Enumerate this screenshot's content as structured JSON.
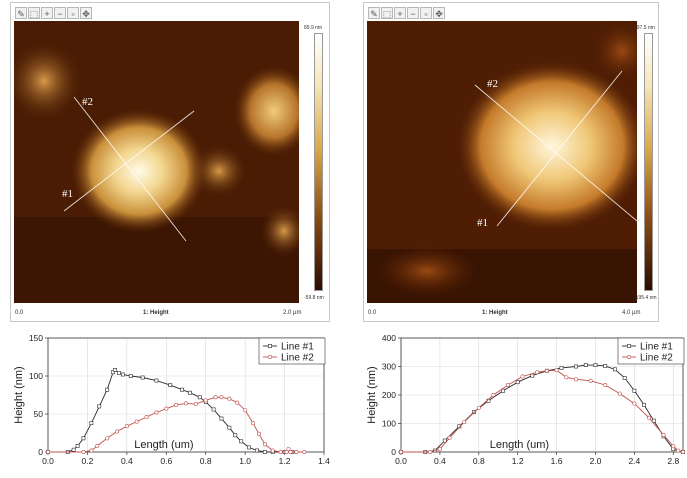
{
  "afm": [
    {
      "toolbar_icons": [
        "pencil-icon",
        "zoom-region-icon",
        "zoom-in-icon",
        "zoom-out-icon",
        "fit-icon",
        "pan-icon"
      ],
      "colorbar_max": "89.9 nm",
      "colorbar_min": "-59.8 nm",
      "x_axis_start": "0.0",
      "x_axis_label": "1: Height",
      "x_axis_end": "2.0 µm",
      "line_labels": [
        "#2",
        "#1"
      ]
    },
    {
      "toolbar_icons": [
        "pencil-icon",
        "zoom-region-icon",
        "zoom-in-icon",
        "zoom-out-icon",
        "fit-icon",
        "pan-icon"
      ],
      "colorbar_max": "297.5 nm",
      "colorbar_min": "-195.4 nm",
      "x_axis_start": "0.0",
      "x_axis_label": "1: Height",
      "x_axis_end": "4.0 µm",
      "line_labels": [
        "#2",
        "#1"
      ]
    }
  ],
  "chart_data": [
    {
      "type": "line",
      "xlabel": "Length (um)",
      "ylabel": "Height (nm)",
      "xlim": [
        0.0,
        1.4
      ],
      "ylim": [
        0,
        150
      ],
      "xticks": [
        "0.0",
        "0.2",
        "0.4",
        "0.6",
        "0.8",
        "1.0",
        "1.2",
        "1.4"
      ],
      "yticks": [
        "0",
        "50",
        "100",
        "150"
      ],
      "grid": true,
      "legend": "top-right",
      "series": [
        {
          "name": "Line #1",
          "color": "#2b2b2b",
          "marker": "square",
          "x": [
            0.0,
            0.1,
            0.13,
            0.15,
            0.18,
            0.22,
            0.26,
            0.3,
            0.33,
            0.34,
            0.36,
            0.38,
            0.42,
            0.48,
            0.55,
            0.62,
            0.68,
            0.72,
            0.77,
            0.8,
            0.84,
            0.88,
            0.92,
            0.95,
            0.98,
            1.02,
            1.06,
            1.1,
            1.14,
            1.2,
            1.24
          ],
          "y": [
            0,
            0,
            3,
            8,
            18,
            38,
            60,
            82,
            105,
            108,
            104,
            102,
            100,
            98,
            94,
            88,
            82,
            78,
            72,
            66,
            56,
            44,
            32,
            22,
            14,
            6,
            2,
            0,
            0,
            0,
            0
          ]
        },
        {
          "name": "Line #2",
          "color": "#c0504d",
          "marker": "circle",
          "x": [
            0.0,
            0.18,
            0.22,
            0.25,
            0.3,
            0.35,
            0.4,
            0.45,
            0.5,
            0.55,
            0.6,
            0.65,
            0.7,
            0.75,
            0.8,
            0.85,
            0.88,
            0.92,
            0.96,
            1.0,
            1.04,
            1.07,
            1.1,
            1.14,
            1.18,
            1.21,
            1.22,
            1.23,
            1.26,
            1.3
          ],
          "y": [
            0,
            0,
            2,
            8,
            18,
            27,
            34,
            40,
            46,
            52,
            57,
            62,
            64,
            63,
            68,
            72,
            72,
            70,
            65,
            55,
            38,
            24,
            10,
            2,
            0,
            0,
            4,
            0,
            0,
            0
          ]
        }
      ]
    },
    {
      "type": "line",
      "xlabel": "Length (um)",
      "ylabel": "Height (nm)",
      "xlim": [
        0.0,
        2.9
      ],
      "ylim": [
        0,
        400
      ],
      "xticks": [
        "0.0",
        "0.4",
        "0.8",
        "1.2",
        "1.6",
        "2.0",
        "2.4",
        "2.8"
      ],
      "yticks": [
        "0",
        "100",
        "200",
        "300",
        "400"
      ],
      "grid": true,
      "legend": "top-right",
      "series": [
        {
          "name": "Line #1",
          "color": "#2b2b2b",
          "marker": "square",
          "x": [
            0.0,
            0.25,
            0.35,
            0.45,
            0.6,
            0.75,
            0.9,
            1.05,
            1.2,
            1.35,
            1.5,
            1.65,
            1.8,
            1.9,
            2.0,
            2.1,
            2.2,
            2.3,
            2.4,
            2.5,
            2.6,
            2.7,
            2.8,
            2.9
          ],
          "y": [
            0,
            0,
            5,
            40,
            90,
            140,
            180,
            215,
            245,
            268,
            285,
            295,
            300,
            305,
            305,
            302,
            290,
            260,
            215,
            165,
            110,
            55,
            10,
            0
          ]
        },
        {
          "name": "Line #2",
          "color": "#c0504d",
          "marker": "circle",
          "x": [
            0.0,
            0.3,
            0.4,
            0.5,
            0.65,
            0.8,
            0.95,
            1.1,
            1.25,
            1.4,
            1.5,
            1.6,
            1.7,
            1.8,
            1.95,
            2.1,
            2.25,
            2.4,
            2.55,
            2.7,
            2.8,
            2.85,
            2.9
          ],
          "y": [
            0,
            0,
            10,
            50,
            105,
            155,
            200,
            235,
            265,
            280,
            285,
            287,
            262,
            255,
            250,
            235,
            205,
            170,
            120,
            60,
            20,
            5,
            0
          ]
        }
      ]
    }
  ]
}
